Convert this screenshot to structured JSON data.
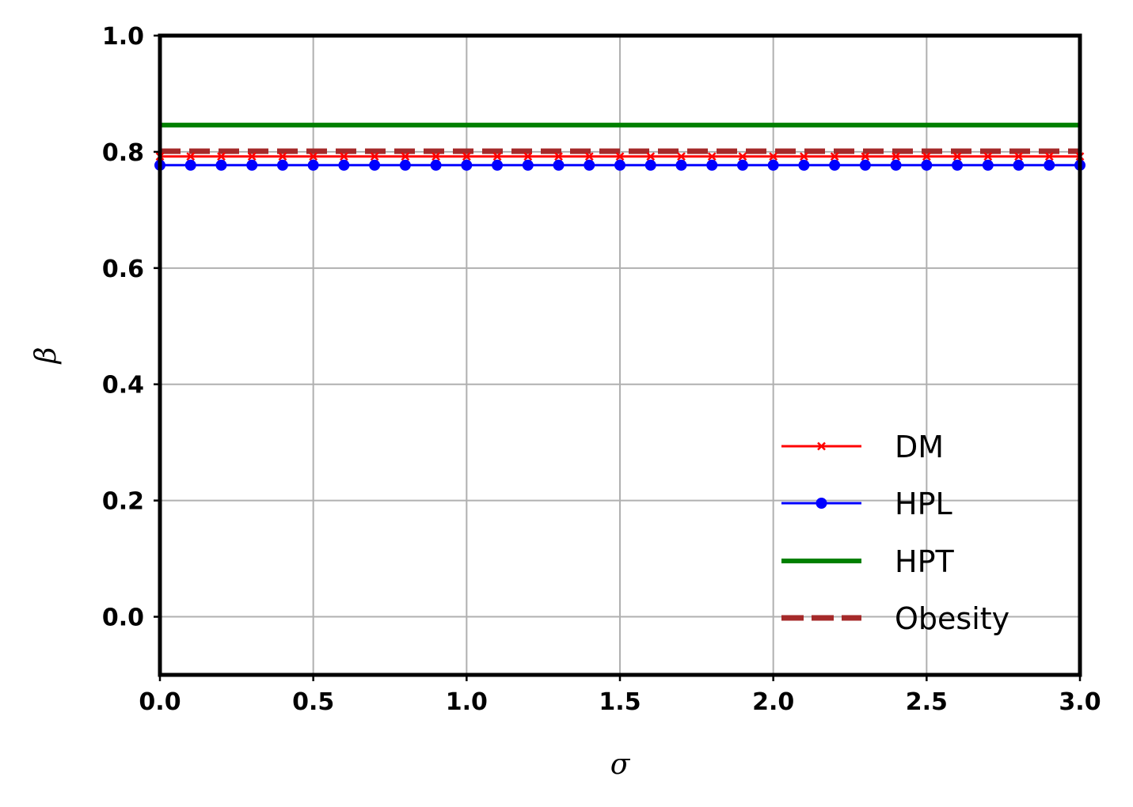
{
  "chart_data": {
    "type": "line",
    "title": "",
    "xlabel": "σ",
    "ylabel": "β",
    "xlim": [
      0.0,
      3.0
    ],
    "ylim": [
      -0.1,
      1.0
    ],
    "xticks": [
      0.0,
      0.5,
      1.0,
      1.5,
      2.0,
      2.5,
      3.0
    ],
    "xtick_labels": [
      "0.0",
      "0.5",
      "1.0",
      "1.5",
      "2.0",
      "2.5",
      "3.0"
    ],
    "yticks": [
      0.0,
      0.2,
      0.4,
      0.6,
      0.8,
      1.0
    ],
    "ytick_labels": [
      "0.0",
      "0.2",
      "0.4",
      "0.6",
      "0.8",
      "1.0"
    ],
    "grid": true,
    "legend_position": "lower-right",
    "x": [
      0.0,
      0.1,
      0.2,
      0.3,
      0.4,
      0.5,
      0.6,
      0.7,
      0.8,
      0.9,
      1.0,
      1.1,
      1.2,
      1.3,
      1.4,
      1.5,
      1.6,
      1.7,
      1.8,
      1.9,
      2.0,
      2.1,
      2.2,
      2.3,
      2.4,
      2.5,
      2.6,
      2.7,
      2.8,
      2.9,
      3.0
    ],
    "series": [
      {
        "name": "DM",
        "color": "#ff0000",
        "marker": "x",
        "linestyle": "solid",
        "values": [
          0.792,
          0.792,
          0.792,
          0.792,
          0.792,
          0.792,
          0.792,
          0.792,
          0.792,
          0.792,
          0.792,
          0.792,
          0.792,
          0.792,
          0.792,
          0.792,
          0.792,
          0.792,
          0.792,
          0.792,
          0.792,
          0.792,
          0.792,
          0.792,
          0.792,
          0.792,
          0.792,
          0.792,
          0.792,
          0.792,
          0.792
        ]
      },
      {
        "name": "HPL",
        "color": "#0000ff",
        "marker": "circle",
        "linestyle": "solid",
        "values": [
          0.777,
          0.777,
          0.777,
          0.777,
          0.777,
          0.777,
          0.777,
          0.777,
          0.777,
          0.777,
          0.777,
          0.777,
          0.777,
          0.777,
          0.777,
          0.777,
          0.777,
          0.777,
          0.777,
          0.777,
          0.777,
          0.777,
          0.777,
          0.777,
          0.777,
          0.777,
          0.777,
          0.777,
          0.777,
          0.777,
          0.777
        ]
      },
      {
        "name": "HPT",
        "color": "#008000",
        "marker": "none",
        "linestyle": "solid",
        "values": [
          0.846,
          0.846,
          0.846,
          0.846,
          0.846,
          0.846,
          0.846,
          0.846,
          0.846,
          0.846,
          0.846,
          0.846,
          0.846,
          0.846,
          0.846,
          0.846,
          0.846,
          0.846,
          0.846,
          0.846,
          0.846,
          0.846,
          0.846,
          0.846,
          0.846,
          0.846,
          0.846,
          0.846,
          0.846,
          0.846,
          0.846
        ]
      },
      {
        "name": "Obesity",
        "color": "#a52a2a",
        "marker": "none",
        "linestyle": "dashed",
        "values": [
          0.801,
          0.801,
          0.801,
          0.801,
          0.801,
          0.801,
          0.801,
          0.801,
          0.801,
          0.801,
          0.801,
          0.801,
          0.801,
          0.801,
          0.801,
          0.801,
          0.801,
          0.801,
          0.801,
          0.801,
          0.801,
          0.801,
          0.801,
          0.801,
          0.801,
          0.801,
          0.801,
          0.801,
          0.801,
          0.801,
          0.801
        ]
      }
    ]
  }
}
